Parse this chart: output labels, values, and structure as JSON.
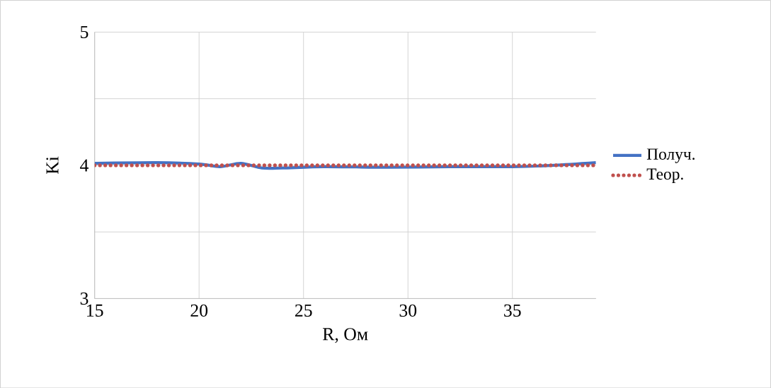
{
  "chart_data": {
    "type": "line",
    "xlabel": "R, Ом",
    "ylabel": "Ki",
    "xlim": [
      15,
      39
    ],
    "ylim": [
      3,
      5
    ],
    "xticks": [
      15,
      20,
      25,
      30,
      35
    ],
    "yticks": [
      3,
      {
        "value": 3.5,
        "label": null
      },
      4,
      {
        "value": 4.5,
        "label": null
      },
      5
    ],
    "grid": true,
    "legend": "right",
    "marker": "none",
    "series": [
      {
        "name": "Получ.",
        "color": "#4472c4",
        "line_style": "solid",
        "x": [
          15,
          18,
          20,
          21,
          22,
          23,
          24,
          26,
          29,
          32,
          35,
          37,
          39
        ],
        "values": [
          4.015,
          4.02,
          4.01,
          3.99,
          4.015,
          3.98,
          3.98,
          3.99,
          3.985,
          3.99,
          3.99,
          4.0,
          4.02
        ]
      },
      {
        "name": "Теор.",
        "color": "#c0504d",
        "line_style": "dotted",
        "x": [
          15,
          39
        ],
        "values": [
          4,
          4
        ]
      }
    ]
  }
}
